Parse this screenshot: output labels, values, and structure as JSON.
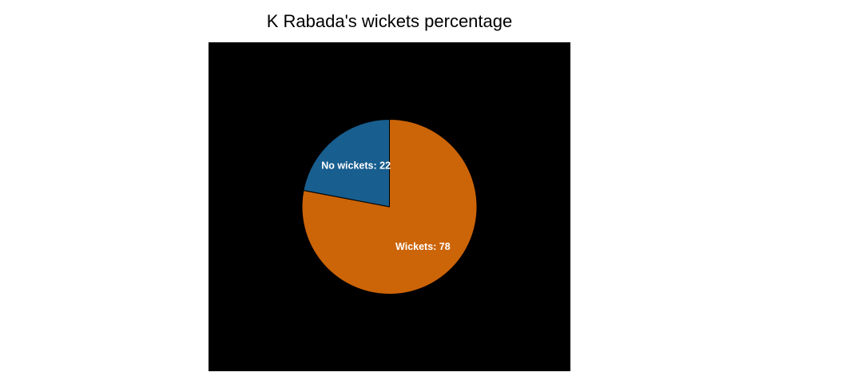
{
  "chart_data": {
    "type": "pie",
    "title": "K Rabada's wickets percentage",
    "categories": [
      "Wickets",
      "No wickets"
    ],
    "values": [
      78,
      22
    ],
    "labels": [
      "Wickets: 78",
      "No wickets: 22"
    ],
    "colors": [
      "#cc6408",
      "#185e8f"
    ],
    "background": "#000000",
    "start_angle_deg": 90,
    "direction": "clockwise"
  }
}
